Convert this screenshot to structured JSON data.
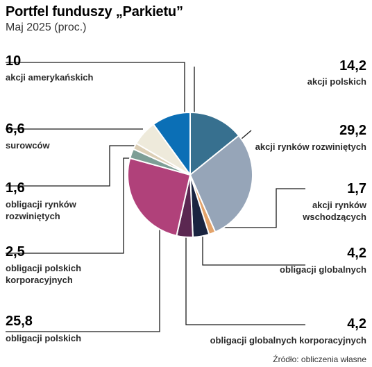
{
  "chart_data": {
    "type": "pie",
    "title": "Portfel funduszy „Parkietu”",
    "subtitle": "Maj 2025 (proc.)",
    "source": "Źródło: obliczenia własne",
    "slices": [
      {
        "value": 14.2,
        "value_label": "14,2",
        "label_lines": [
          "akcji polskich"
        ],
        "color": "#37708f"
      },
      {
        "value": 29.2,
        "value_label": "29,2",
        "label_lines": [
          "akcji rynków rozwiniętych"
        ],
        "color": "#96a5b8"
      },
      {
        "value": 1.7,
        "value_label": "1,7",
        "label_lines": [
          "akcji rynków",
          "wschodzących"
        ],
        "color": "#e3a36a"
      },
      {
        "value": 4.2,
        "value_label": "4,2",
        "label_lines": [
          "obligacji globalnych"
        ],
        "color": "#1a2440"
      },
      {
        "value": 4.2,
        "value_label": "4,2",
        "label_lines": [
          "obligacji globalnych korporacyjnych"
        ],
        "color": "#5b2751"
      },
      {
        "value": 25.8,
        "value_label": "25,8",
        "label_lines": [
          "obligacji polskich"
        ],
        "color": "#b0417a"
      },
      {
        "value": 2.5,
        "value_label": "2,5",
        "label_lines": [
          "obligacji polskich",
          "korporacyjnych"
        ],
        "color": "#7d9e96"
      },
      {
        "value": 1.6,
        "value_label": "1,6",
        "label_lines": [
          "obligacji rynków",
          "rozwiniętych"
        ],
        "color": "#dccfb6"
      },
      {
        "value": 6.6,
        "value_label": "6,6",
        "label_lines": [
          "surowców"
        ],
        "color": "#eeeadb"
      },
      {
        "value": 10,
        "value_label": "10",
        "label_lines": [
          "akcji amerykańskich"
        ],
        "color": "#0b6fb6"
      }
    ]
  }
}
